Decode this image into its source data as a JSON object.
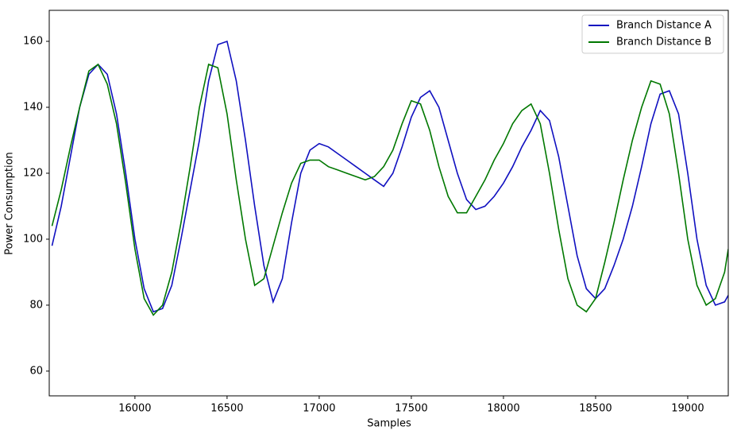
{
  "chart_data": {
    "type": "line",
    "x_label": "Samples",
    "y_label": "Power Consumption",
    "x": [
      15550,
      15600,
      15650,
      15700,
      15750,
      15800,
      15850,
      15900,
      15950,
      16000,
      16050,
      16100,
      16150,
      16200,
      16250,
      16300,
      16350,
      16400,
      16450,
      16500,
      16550,
      16600,
      16650,
      16700,
      16750,
      16800,
      16850,
      16900,
      16950,
      17000,
      17050,
      17100,
      17150,
      17200,
      17250,
      17300,
      17350,
      17400,
      17450,
      17500,
      17550,
      17600,
      17650,
      17700,
      17750,
      17800,
      17850,
      17900,
      17950,
      18000,
      18050,
      18100,
      18150,
      18200,
      18250,
      18300,
      18350,
      18400,
      18450,
      18500,
      18550,
      18600,
      18650,
      18700,
      18750,
      18800,
      18850,
      18900,
      18950,
      19000,
      19050,
      19100,
      19150,
      19200,
      19220
    ],
    "series": [
      {
        "name": "Branch Distance A",
        "color": "#1010c0",
        "values": [
          98,
          110,
          125,
          140,
          150,
          153,
          150,
          138,
          120,
          100,
          85,
          78,
          79,
          86,
          100,
          115,
          130,
          148,
          159,
          160,
          148,
          130,
          110,
          92,
          81,
          88,
          105,
          120,
          127,
          129,
          128,
          126,
          124,
          122,
          120,
          118,
          116,
          120,
          128,
          137,
          143,
          145,
          140,
          130,
          120,
          112,
          109,
          110,
          113,
          117,
          122,
          128,
          133,
          139,
          136,
          125,
          110,
          95,
          85,
          82,
          85,
          92,
          100,
          110,
          122,
          135,
          144,
          145,
          138,
          120,
          100,
          86,
          80,
          81,
          83
        ]
      },
      {
        "name": "Branch Distance B",
        "color": "#007800",
        "values": [
          104,
          115,
          128,
          140,
          151,
          153,
          147,
          135,
          117,
          97,
          82,
          77,
          80,
          90,
          105,
          122,
          140,
          153,
          152,
          138,
          118,
          100,
          86,
          88,
          98,
          108,
          117,
          123,
          124,
          124,
          122,
          121,
          120,
          119,
          118,
          119,
          122,
          127,
          135,
          142,
          141,
          133,
          122,
          113,
          108,
          108,
          113,
          118,
          124,
          129,
          135,
          139,
          141,
          135,
          120,
          103,
          88,
          80,
          78,
          82,
          93,
          105,
          118,
          130,
          140,
          148,
          147,
          138,
          120,
          100,
          86,
          80,
          82,
          90,
          97
        ]
      }
    ],
    "xlim": [
      15535,
      19220
    ],
    "ylim": [
      52.5,
      169.4
    ],
    "xticks": [
      16000,
      16500,
      17000,
      17500,
      18000,
      18500,
      19000
    ],
    "yticks": [
      60,
      80,
      100,
      120,
      140,
      160
    ],
    "legend": "upper right"
  }
}
